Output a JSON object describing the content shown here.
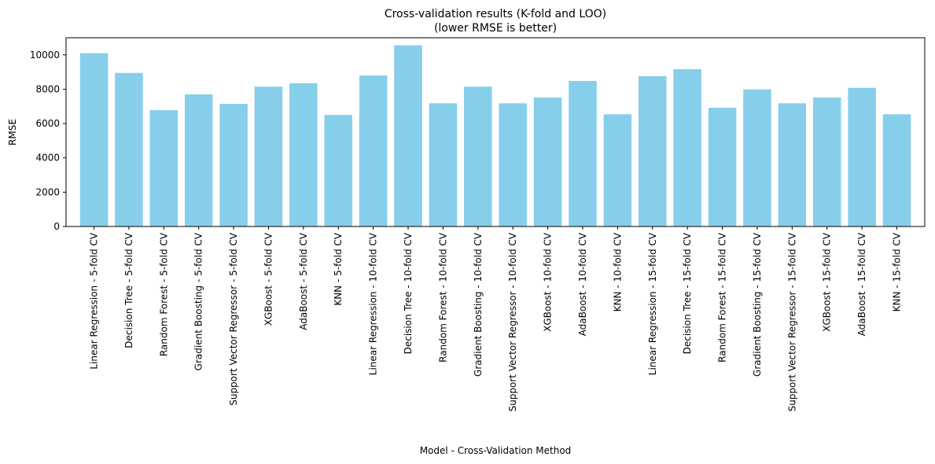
{
  "chart_data": {
    "type": "bar",
    "title": "Cross-validation results (K-fold and LOO)",
    "subtitle": "(lower RMSE is better)",
    "xlabel": "Model - Cross-Validation Method",
    "ylabel": "RMSE",
    "ylim": [
      0,
      11000
    ],
    "yticks": [
      0,
      2000,
      4000,
      6000,
      8000,
      10000
    ],
    "grid": false,
    "bar_color": "#87CEEB",
    "categories": [
      "Linear Regression - 5-fold CV",
      "Decision Tree - 5-fold CV",
      "Random Forest - 5-fold CV",
      "Gradient Boosting - 5-fold CV",
      "Support Vector Regressor - 5-fold CV",
      "XGBoost - 5-fold CV",
      "AdaBoost - 5-fold CV",
      "KNN - 5-fold CV",
      "Linear Regression - 10-fold CV",
      "Decision Tree - 10-fold CV",
      "Random Forest - 10-fold CV",
      "Gradient Boosting - 10-fold CV",
      "Support Vector Regressor - 10-fold CV",
      "XGBoost - 10-fold CV",
      "AdaBoost - 10-fold CV",
      "KNN - 10-fold CV",
      "Linear Regression - 15-fold CV",
      "Decision Tree - 15-fold CV",
      "Random Forest - 15-fold CV",
      "Gradient Boosting - 15-fold CV",
      "Support Vector Regressor - 15-fold CV",
      "XGBoost - 15-fold CV",
      "AdaBoost - 15-fold CV",
      "KNN - 15-fold CV"
    ],
    "values": [
      10100,
      8950,
      6780,
      7700,
      7150,
      8150,
      8350,
      6500,
      8800,
      10560,
      7180,
      8150,
      7180,
      7520,
      8480,
      6540,
      8760,
      9170,
      6920,
      7990,
      7180,
      7520,
      8080,
      6540
    ]
  }
}
